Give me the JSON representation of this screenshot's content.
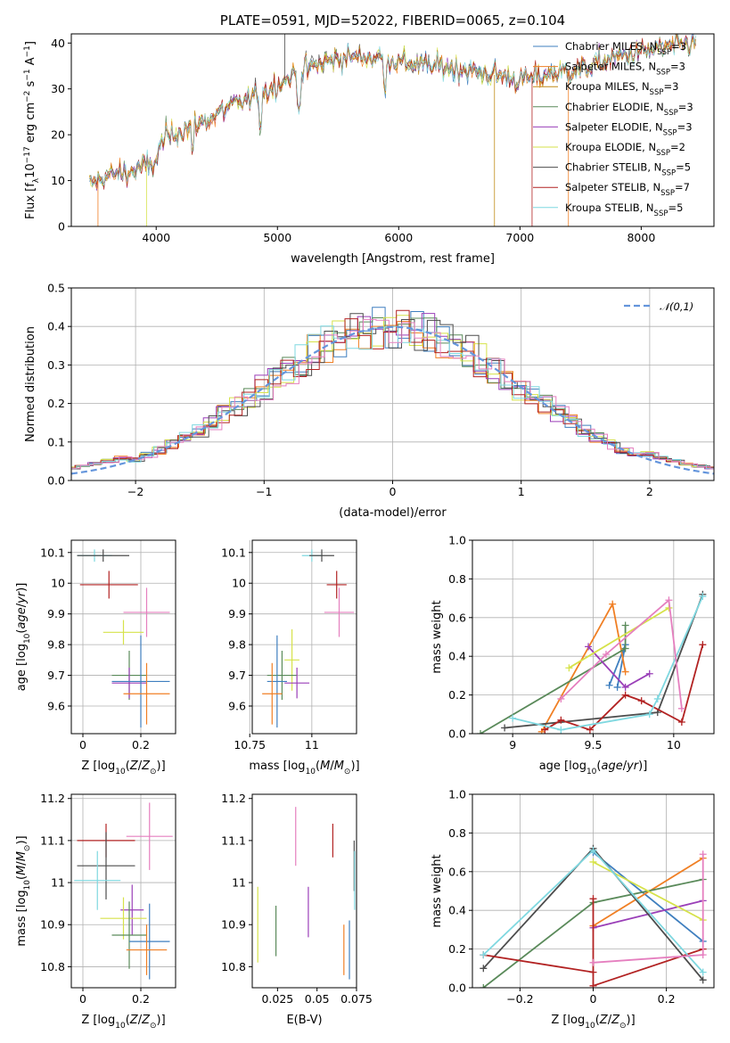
{
  "chart_data": [
    {
      "type": "line",
      "title": "PLATE=0591, MJD=52022, FIBERID=0065, z=0.104",
      "xlabel": "wavelength [Angstrom, rest frame]",
      "ylabel": "Flux [f_λ10^-17 erg cm^-2 s^-1 A^-1]",
      "xlim": [
        3300,
        8600
      ],
      "ylim": [
        0,
        42
      ],
      "xticks": [
        4000,
        5000,
        6000,
        7000,
        8000
      ],
      "yticks": [
        0,
        10,
        20,
        30,
        40
      ],
      "grid": false,
      "legend_position": "top-right",
      "continuum": [
        [
          3450,
          9
        ],
        [
          3600,
          11
        ],
        [
          3800,
          12
        ],
        [
          4000,
          14
        ],
        [
          4050,
          19
        ],
        [
          4200,
          21
        ],
        [
          4400,
          23
        ],
        [
          4600,
          26
        ],
        [
          4800,
          28
        ],
        [
          5000,
          31
        ],
        [
          5200,
          34
        ],
        [
          5400,
          36
        ],
        [
          5600,
          37
        ],
        [
          5800,
          37
        ],
        [
          6000,
          36
        ],
        [
          6200,
          35
        ],
        [
          6400,
          35
        ],
        [
          6600,
          34
        ],
        [
          6800,
          33
        ],
        [
          7000,
          32
        ],
        [
          7200,
          33
        ],
        [
          7400,
          34
        ],
        [
          7600,
          35
        ],
        [
          7800,
          37
        ],
        [
          8000,
          38
        ],
        [
          8200,
          39
        ],
        [
          8450,
          40
        ]
      ],
      "series": [
        {
          "name": "Chabrier MILES, N_SSP=3",
          "color": "#3f7fbf"
        },
        {
          "name": "Salpeter MILES, N_SSP=3",
          "color": "#f07f24"
        },
        {
          "name": "Kroupa MILES, N_SSP=3",
          "color": "#c08a17"
        },
        {
          "name": "Chabrier ELODIE, N_SSP=3",
          "color": "#5a8a5a"
        },
        {
          "name": "Salpeter ELODIE, N_SSP=3",
          "color": "#9a3fb8"
        },
        {
          "name": "Kroupa ELODIE, N_SSP=2",
          "color": "#d6e24a"
        },
        {
          "name": "Chabrier STELIB, N_SSP=5",
          "color": "#4d4d4d"
        },
        {
          "name": "Salpeter STELIB, N_SSP=7",
          "color": "#b22222"
        },
        {
          "name": "Kroupa STELIB, N_SSP=5",
          "color": "#7fd8e0"
        }
      ]
    },
    {
      "type": "line",
      "title": "",
      "xlabel": "(data-model)/error",
      "ylabel": "Normed distribution",
      "xlim": [
        -2.5,
        2.5
      ],
      "ylim": [
        0,
        0.5
      ],
      "xticks": [
        -2,
        -1,
        0,
        1,
        2
      ],
      "yticks": [
        0.0,
        0.1,
        0.2,
        0.3,
        0.4,
        0.5
      ],
      "grid": true,
      "legend_position": "top-right",
      "gaussian": {
        "name": "𝒩(0,1)",
        "color": "#6495dc"
      },
      "hist_colors": [
        "#3f7fbf",
        "#f07f24",
        "#5a8a5a",
        "#9a3fb8",
        "#d6e24a",
        "#4d4d4d",
        "#b22222",
        "#7fd8e0",
        "#e57fbf"
      ]
    },
    {
      "type": "scatter",
      "title": "",
      "xlabel": "Z [log10(Z/Z⊙)]",
      "ylabel": "age  [log10(age/yr)]",
      "xlim": [
        -0.04,
        0.32
      ],
      "ylim": [
        9.51,
        10.14
      ],
      "xticks": [
        0.0,
        0.2
      ],
      "yticks": [
        9.6,
        9.7,
        9.8,
        9.9,
        10.0,
        10.1
      ],
      "grid": true,
      "points": [
        {
          "x": 0.04,
          "y": 10.09,
          "xe": 0.06,
          "ye": 0.02,
          "color": "#7fd8e0"
        },
        {
          "x": 0.07,
          "y": 10.09,
          "xe": 0.09,
          "ye": 0.02,
          "color": "#4d4d4d"
        },
        {
          "x": 0.09,
          "y": 9.995,
          "xe": 0.1,
          "ye": 0.045,
          "color": "#b22222"
        },
        {
          "x": 0.22,
          "y": 9.905,
          "xe": 0.08,
          "ye": 0.08,
          "color": "#e57fbf"
        },
        {
          "x": 0.14,
          "y": 9.84,
          "xe": 0.07,
          "ye": 0.04,
          "color": "#d6e24a"
        },
        {
          "x": 0.16,
          "y": 9.7,
          "xe": 0.06,
          "ye": 0.08,
          "color": "#5a8a5a"
        },
        {
          "x": 0.16,
          "y": 9.675,
          "xe": 0.06,
          "ye": 0.05,
          "color": "#9a3fb8"
        },
        {
          "x": 0.2,
          "y": 9.68,
          "xe": 0.1,
          "ye": 0.15,
          "color": "#3f7fbf"
        },
        {
          "x": 0.22,
          "y": 9.64,
          "xe": 0.08,
          "ye": 0.1,
          "color": "#f07f24"
        }
      ]
    },
    {
      "type": "scatter",
      "title": "",
      "xlabel": "mass [log10(M/M⊙)]",
      "ylabel": "",
      "xlim": [
        10.76,
        11.18
      ],
      "ylim": [
        9.51,
        10.14
      ],
      "xticks": [
        10.75,
        11.0
      ],
      "yticks": [
        9.6,
        9.7,
        9.8,
        9.9,
        10.0,
        10.1
      ],
      "grid": true,
      "points": [
        {
          "x": 11.0,
          "y": 10.09,
          "xe": 0.04,
          "ye": 0.02,
          "color": "#7fd8e0"
        },
        {
          "x": 11.04,
          "y": 10.09,
          "xe": 0.05,
          "ye": 0.02,
          "color": "#4d4d4d"
        },
        {
          "x": 11.1,
          "y": 9.995,
          "xe": 0.04,
          "ye": 0.045,
          "color": "#b22222"
        },
        {
          "x": 11.11,
          "y": 9.905,
          "xe": 0.06,
          "ye": 0.08,
          "color": "#e57fbf"
        },
        {
          "x": 10.92,
          "y": 9.75,
          "xe": 0.03,
          "ye": 0.1,
          "color": "#d6e24a"
        },
        {
          "x": 10.88,
          "y": 9.7,
          "xe": 0.06,
          "ye": 0.08,
          "color": "#5a8a5a"
        },
        {
          "x": 10.94,
          "y": 9.675,
          "xe": 0.05,
          "ye": 0.05,
          "color": "#9a3fb8"
        },
        {
          "x": 10.86,
          "y": 9.68,
          "xe": 0.04,
          "ye": 0.15,
          "color": "#3f7fbf"
        },
        {
          "x": 10.84,
          "y": 9.64,
          "xe": 0.04,
          "ye": 0.1,
          "color": "#f07f24"
        }
      ]
    },
    {
      "type": "line",
      "title": "",
      "xlabel": "age  [log10(age/yr)]",
      "ylabel": "mass weight",
      "xlim": [
        8.75,
        10.25
      ],
      "ylim": [
        0,
        1
      ],
      "xticks": [
        9.0,
        9.5,
        10.0
      ],
      "yticks": [
        0.0,
        0.2,
        0.4,
        0.6,
        0.8,
        1.0
      ],
      "grid": true,
      "series": [
        {
          "color": "#3f7fbf",
          "points": [
            [
              9.65,
              0.24
            ],
            [
              9.7,
              0.46
            ],
            [
              9.6,
              0.25
            ]
          ]
        },
        {
          "color": "#f07f24",
          "points": [
            [
              9.18,
              0.01
            ],
            [
              9.62,
              0.67
            ],
            [
              9.7,
              0.32
            ]
          ]
        },
        {
          "color": "#5a8a5a",
          "points": [
            [
              8.8,
              0.0
            ],
            [
              9.7,
              0.44
            ],
            [
              9.7,
              0.56
            ]
          ]
        },
        {
          "color": "#9a3fb8",
          "points": [
            [
              9.47,
              0.45
            ],
            [
              9.7,
              0.24
            ],
            [
              9.85,
              0.31
            ]
          ]
        },
        {
          "color": "#d6e24a",
          "points": [
            [
              9.35,
              0.34
            ],
            [
              9.97,
              0.65
            ]
          ]
        },
        {
          "color": "#4d4d4d",
          "points": [
            [
              8.95,
              0.03
            ],
            [
              9.9,
              0.11
            ],
            [
              10.18,
              0.72
            ]
          ]
        },
        {
          "color": "#b22222",
          "points": [
            [
              9.2,
              0.02
            ],
            [
              9.3,
              0.07
            ],
            [
              9.48,
              0.02
            ],
            [
              9.7,
              0.2
            ],
            [
              9.8,
              0.17
            ],
            [
              10.05,
              0.06
            ],
            [
              10.18,
              0.46
            ]
          ]
        },
        {
          "color": "#7fd8e0",
          "points": [
            [
              9.0,
              0.08
            ],
            [
              9.3,
              0.02
            ],
            [
              9.85,
              0.1
            ],
            [
              9.9,
              0.18
            ],
            [
              10.18,
              0.71
            ]
          ]
        },
        {
          "color": "#e57fbf",
          "points": [
            [
              9.3,
              0.18
            ],
            [
              9.58,
              0.41
            ],
            [
              9.97,
              0.69
            ],
            [
              10.05,
              0.13
            ]
          ]
        }
      ]
    },
    {
      "type": "scatter",
      "title": "",
      "xlabel": "Z [log10(Z/Z⊙)]",
      "ylabel": "mass [log10(M/M⊙)]",
      "xlim": [
        -0.04,
        0.32
      ],
      "ylim": [
        10.75,
        11.21
      ],
      "xticks": [
        0.0,
        0.2
      ],
      "yticks": [
        10.8,
        10.9,
        11.0,
        11.1,
        11.2
      ],
      "grid": true,
      "points": [
        {
          "x": 0.08,
          "y": 11.1,
          "xe": 0.1,
          "ye": 0.04,
          "color": "#b22222"
        },
        {
          "x": 0.23,
          "y": 11.11,
          "xe": 0.08,
          "ye": 0.08,
          "color": "#e57fbf"
        },
        {
          "x": 0.08,
          "y": 11.04,
          "xe": 0.1,
          "ye": 0.08,
          "color": "#4d4d4d"
        },
        {
          "x": 0.05,
          "y": 11.005,
          "xe": 0.08,
          "ye": 0.07,
          "color": "#7fd8e0"
        },
        {
          "x": 0.17,
          "y": 10.935,
          "xe": 0.04,
          "ye": 0.06,
          "color": "#9a3fb8"
        },
        {
          "x": 0.14,
          "y": 10.915,
          "xe": 0.08,
          "ye": 0.05,
          "color": "#d6e24a"
        },
        {
          "x": 0.16,
          "y": 10.875,
          "xe": 0.06,
          "ye": 0.08,
          "color": "#5a8a5a"
        },
        {
          "x": 0.23,
          "y": 10.86,
          "xe": 0.07,
          "ye": 0.09,
          "color": "#3f7fbf"
        },
        {
          "x": 0.22,
          "y": 10.84,
          "xe": 0.07,
          "ye": 0.06,
          "color": "#f07f24"
        }
      ]
    },
    {
      "type": "scatter",
      "title": "",
      "xlabel": "E(B-V)",
      "ylabel": "",
      "xlim": [
        0.009,
        0.075
      ],
      "ylim": [
        10.75,
        11.21
      ],
      "xticks": [
        0.025,
        0.05,
        0.075
      ],
      "yticks": [
        10.8,
        10.9,
        11.0,
        11.1,
        11.2
      ],
      "grid": false,
      "points": [
        {
          "x": 0.0365,
          "y": 11.11,
          "ye": 0.07,
          "color": "#e57fbf"
        },
        {
          "x": 0.06,
          "y": 11.1,
          "ye": 0.04,
          "color": "#b22222"
        },
        {
          "x": 0.0735,
          "y": 11.04,
          "ye": 0.06,
          "color": "#4d4d4d"
        },
        {
          "x": 0.0738,
          "y": 11.005,
          "ye": 0.07,
          "color": "#7fd8e0"
        },
        {
          "x": 0.0445,
          "y": 10.93,
          "ye": 0.06,
          "color": "#9a3fb8"
        },
        {
          "x": 0.0125,
          "y": 10.9,
          "ye": 0.09,
          "color": "#d6e24a"
        },
        {
          "x": 0.024,
          "y": 10.885,
          "ye": 0.06,
          "color": "#5a8a5a"
        },
        {
          "x": 0.0705,
          "y": 10.84,
          "ye": 0.07,
          "color": "#3f7fbf"
        },
        {
          "x": 0.067,
          "y": 10.84,
          "ye": 0.06,
          "color": "#f07f24"
        }
      ]
    },
    {
      "type": "line",
      "title": "",
      "xlabel": "Z [log10(Z/Z⊙)]",
      "ylabel": "mass weight",
      "xlim": [
        -0.33,
        0.33
      ],
      "ylim": [
        0,
        1
      ],
      "xticks": [
        -0.2,
        0.0,
        0.2
      ],
      "yticks": [
        0.0,
        0.2,
        0.4,
        0.6,
        0.8,
        1.0
      ],
      "grid": true,
      "series": [
        {
          "color": "#3f7fbf",
          "points": [
            [
              0.0,
              0.7
            ],
            [
              0.3,
              0.24
            ]
          ]
        },
        {
          "color": "#f07f24",
          "points": [
            [
              0.0,
              0.32
            ],
            [
              0.3,
              0.67
            ]
          ]
        },
        {
          "color": "#5a8a5a",
          "points": [
            [
              -0.3,
              0.0
            ],
            [
              0.0,
              0.44
            ],
            [
              0.3,
              0.56
            ]
          ]
        },
        {
          "color": "#9a3fb8",
          "points": [
            [
              0.0,
              0.31
            ],
            [
              0.3,
              0.45
            ]
          ]
        },
        {
          "color": "#d6e24a",
          "points": [
            [
              0.0,
              0.65
            ],
            [
              0.3,
              0.35
            ]
          ]
        },
        {
          "color": "#4d4d4d",
          "points": [
            [
              -0.3,
              0.1
            ],
            [
              0.0,
              0.72
            ],
            [
              0.3,
              0.04
            ]
          ]
        },
        {
          "color": "#b22222",
          "points": [
            [
              -0.3,
              0.17
            ],
            [
              0.0,
              0.08
            ],
            [
              0.0,
              0.46
            ],
            [
              0.0,
              0.01
            ],
            [
              0.3,
              0.2
            ]
          ]
        },
        {
          "color": "#7fd8e0",
          "points": [
            [
              -0.3,
              0.17
            ],
            [
              0.0,
              0.71
            ],
            [
              0.3,
              0.08
            ]
          ]
        },
        {
          "color": "#e57fbf",
          "points": [
            [
              0.0,
              0.13
            ],
            [
              0.3,
              0.17
            ],
            [
              0.3,
              0.69
            ]
          ]
        }
      ]
    }
  ]
}
